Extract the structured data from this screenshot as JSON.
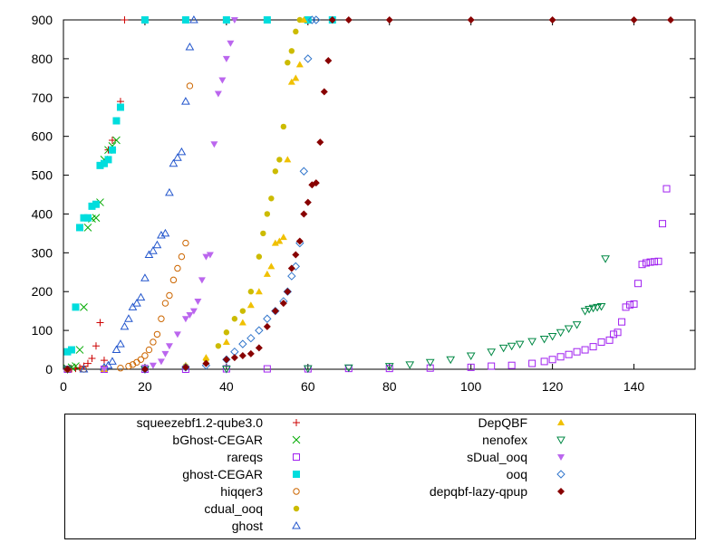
{
  "chart_data": {
    "type": "scatter",
    "title": "",
    "xlabel": "",
    "ylabel": "",
    "xlim": [
      0,
      155
    ],
    "ylim": [
      0,
      900
    ],
    "xticks": [
      0,
      20,
      40,
      60,
      80,
      100,
      120,
      140
    ],
    "yticks": [
      0,
      100,
      200,
      300,
      400,
      500,
      600,
      700,
      800,
      900
    ],
    "grid": false,
    "legend_position": "bottom",
    "series": [
      {
        "name": "squeezebf1.2-qube3.0",
        "color": "#cc0000",
        "marker": "plus",
        "x": [
          1,
          2,
          3,
          4,
          5,
          6,
          7,
          8,
          9,
          10,
          11,
          12,
          13,
          14,
          15
        ],
        "y": [
          0,
          1,
          2,
          4,
          8,
          15,
          28,
          60,
          120,
          23,
          565,
          590,
          640,
          690,
          900
        ]
      },
      {
        "name": "bGhost-CEGAR",
        "color": "#00aa00",
        "marker": "cross",
        "x": [
          1,
          2,
          3,
          4,
          5,
          6,
          7,
          8,
          9,
          10,
          11,
          12,
          13
        ],
        "y": [
          2,
          5,
          8,
          50,
          160,
          365,
          388,
          390,
          430,
          540,
          565,
          575,
          590
        ]
      },
      {
        "name": "rareqs",
        "color": "#a020f0",
        "marker": "open-square",
        "x": [
          1,
          10,
          20,
          30,
          40,
          50,
          60,
          70,
          80,
          90,
          100,
          105,
          110,
          115,
          118,
          120,
          122,
          124,
          126,
          128,
          130,
          132,
          134,
          135,
          136,
          137,
          138,
          139,
          140,
          141,
          142,
          143,
          144,
          145,
          146,
          147,
          148
        ],
        "y": [
          0,
          0,
          0,
          0,
          1,
          1,
          1,
          2,
          2,
          3,
          5,
          8,
          10,
          15,
          20,
          25,
          32,
          38,
          45,
          50,
          58,
          70,
          75,
          90,
          95,
          122,
          160,
          166,
          168,
          221,
          270,
          274,
          276,
          277,
          278,
          375,
          465
        ]
      },
      {
        "name": "ghost-CEGAR",
        "color": "#00dddd",
        "marker": "filled-square",
        "x": [
          1,
          2,
          3,
          4,
          5,
          6,
          7,
          8,
          9,
          10,
          11,
          12,
          13,
          14,
          20,
          30,
          40,
          50,
          60,
          66
        ],
        "y": [
          45,
          50,
          160,
          365,
          390,
          390,
          420,
          425,
          525,
          530,
          540,
          565,
          640,
          675,
          900,
          900,
          900,
          900,
          900,
          900
        ]
      },
      {
        "name": "hiqqer3",
        "color": "#cc6600",
        "marker": "open-circle",
        "x": [
          1,
          5,
          10,
          14,
          16,
          17,
          18,
          19,
          20,
          21,
          22,
          23,
          24,
          25,
          26,
          27,
          28,
          29,
          30,
          31
        ],
        "y": [
          0,
          0,
          1,
          3,
          8,
          12,
          18,
          25,
          35,
          50,
          70,
          90,
          130,
          170,
          190,
          230,
          260,
          290,
          325,
          730
        ]
      },
      {
        "name": "cdual_ooq",
        "color": "#ccbb00",
        "marker": "filled-circle",
        "x": [
          10,
          20,
          30,
          35,
          38,
          40,
          42,
          44,
          46,
          48,
          49,
          50,
          51,
          52,
          53,
          54,
          55,
          56,
          57,
          58
        ],
        "y": [
          0,
          2,
          8,
          25,
          60,
          95,
          130,
          150,
          200,
          290,
          350,
          400,
          440,
          510,
          540,
          625,
          790,
          820,
          870,
          900
        ]
      },
      {
        "name": "ghost",
        "color": "#2255cc",
        "marker": "open-triangle",
        "x": [
          5,
          10,
          11,
          12,
          13,
          14,
          15,
          16,
          17,
          18,
          19,
          20,
          21,
          22,
          23,
          24,
          25,
          26,
          27,
          28,
          29,
          30,
          31,
          32
        ],
        "y": [
          0,
          5,
          10,
          20,
          50,
          65,
          110,
          130,
          160,
          170,
          185,
          235,
          295,
          305,
          320,
          345,
          350,
          455,
          530,
          545,
          560,
          690,
          830,
          900
        ]
      },
      {
        "name": "DepQBF",
        "color": "#f0c000",
        "marker": "filled-triangle",
        "x": [
          10,
          20,
          30,
          35,
          40,
          44,
          46,
          48,
          50,
          51,
          52,
          53,
          54,
          55,
          56,
          57,
          58,
          59
        ],
        "y": [
          0,
          3,
          10,
          30,
          70,
          120,
          165,
          200,
          245,
          265,
          325,
          330,
          340,
          540,
          740,
          750,
          785,
          900
        ]
      },
      {
        "name": "nenofex",
        "color": "#008844",
        "marker": "open-down-triangle",
        "x": [
          1,
          20,
          40,
          60,
          70,
          80,
          85,
          90,
          95,
          100,
          105,
          108,
          110,
          112,
          115,
          118,
          120,
          122,
          124,
          126,
          128,
          129,
          130,
          131,
          132,
          133
        ],
        "y": [
          0,
          0,
          1,
          2,
          4,
          8,
          12,
          18,
          25,
          35,
          45,
          55,
          60,
          65,
          72,
          78,
          85,
          95,
          105,
          115,
          150,
          155,
          158,
          160,
          162,
          285
        ]
      },
      {
        "name": "sDual_ooq",
        "color": "#bb66ee",
        "marker": "filled-down-triangle",
        "x": [
          10,
          20,
          22,
          24,
          25,
          26,
          28,
          30,
          31,
          32,
          33,
          34,
          35,
          36,
          37,
          38,
          39,
          40,
          41,
          42
        ],
        "y": [
          0,
          5,
          10,
          20,
          40,
          60,
          90,
          130,
          140,
          150,
          175,
          230,
          290,
          295,
          580,
          710,
          745,
          800,
          840,
          900
        ]
      },
      {
        "name": "ooq",
        "color": "#3377cc",
        "marker": "open-diamond",
        "x": [
          20,
          30,
          35,
          40,
          42,
          44,
          46,
          48,
          50,
          52,
          54,
          55,
          56,
          57,
          58,
          59,
          60,
          61,
          62
        ],
        "y": [
          0,
          5,
          10,
          25,
          45,
          65,
          80,
          100,
          130,
          150,
          175,
          200,
          240,
          265,
          325,
          510,
          800,
          900,
          900
        ]
      },
      {
        "name": "depqbf-lazy-qpup",
        "color": "#880000",
        "marker": "filled-diamond",
        "x": [
          1,
          20,
          30,
          35,
          40,
          42,
          44,
          46,
          48,
          50,
          52,
          54,
          55,
          56,
          57,
          58,
          59,
          60,
          61,
          62,
          63,
          64,
          65,
          66,
          70,
          80,
          100,
          120,
          140,
          149
        ],
        "y": [
          0,
          0,
          5,
          15,
          25,
          30,
          35,
          40,
          55,
          110,
          150,
          170,
          200,
          260,
          295,
          330,
          400,
          430,
          475,
          480,
          585,
          715,
          795,
          900,
          900,
          900,
          900,
          900,
          900,
          900
        ]
      }
    ]
  }
}
